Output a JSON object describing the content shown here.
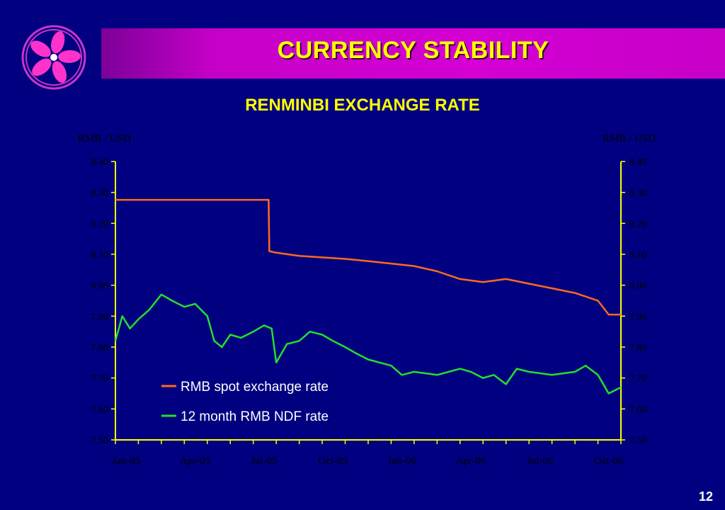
{
  "header": {
    "title": "CURRENCY STABILITY",
    "subtitle": "RENMINBI EXCHANGE RATE",
    "logo_icon": "bauhinia-flower-icon"
  },
  "page_number": "12",
  "colors": {
    "background": "#000080",
    "title_bar": "#cc00cc",
    "title_text": "#ffff00",
    "axis": "#ffff00",
    "spot_series": "#ff6a1a",
    "ndf_series": "#22e02a"
  },
  "chart_data": {
    "type": "line",
    "ylabel_left": "RMB / USD",
    "ylabel_right": "RMB / USD",
    "ylim": [
      7.5,
      8.4
    ],
    "yticks": [
      "7.50",
      "7.60",
      "7.70",
      "7.80",
      "7.90",
      "8.00",
      "8.10",
      "8.20",
      "8.30",
      "8.40"
    ],
    "xticks": [
      "Jan-05",
      "Apr-05",
      "Jul-05",
      "Oct-05",
      "Jan-06",
      "Apr-06",
      "Jul-06",
      "Oct-06"
    ],
    "xlim": [
      "2005-01",
      "2006-11"
    ],
    "grid": false,
    "legend_position": "bottom-center",
    "series": [
      {
        "name": "RMB spot exchange rate",
        "x": [
          "2005-01",
          "2005-02",
          "2005-03",
          "2005-04",
          "2005-05",
          "2005-06",
          "2005-07",
          "2005-07-21",
          "2005-07-22",
          "2005-08",
          "2005-09",
          "2005-10",
          "2005-11",
          "2005-12",
          "2006-01",
          "2006-02",
          "2006-03",
          "2006-04",
          "2006-05",
          "2006-06",
          "2006-07",
          "2006-08",
          "2006-09",
          "2006-10",
          "2006-10-15",
          "2006-11"
        ],
        "values": [
          8.276,
          8.276,
          8.276,
          8.276,
          8.276,
          8.276,
          8.276,
          8.276,
          8.11,
          8.105,
          8.095,
          8.09,
          8.085,
          8.078,
          8.07,
          8.062,
          8.045,
          8.02,
          8.01,
          8.02,
          8.005,
          7.99,
          7.975,
          7.95,
          7.905,
          7.905
        ]
      },
      {
        "name": "12 month RMB NDF rate",
        "x": [
          "2005-01",
          "2005-01-10",
          "2005-01-20",
          "2005-02",
          "2005-02-15",
          "2005-03",
          "2005-03-15",
          "2005-04",
          "2005-04-15",
          "2005-05",
          "2005-05-10",
          "2005-05-20",
          "2005-06",
          "2005-06-15",
          "2005-07",
          "2005-07-15",
          "2005-07-25",
          "2005-08",
          "2005-08-15",
          "2005-09",
          "2005-09-15",
          "2005-10",
          "2005-10-15",
          "2005-11",
          "2005-11-15",
          "2005-12",
          "2006-01",
          "2006-01-15",
          "2006-02",
          "2006-03",
          "2006-04",
          "2006-04-15",
          "2006-05",
          "2006-05-15",
          "2006-06",
          "2006-06-15",
          "2006-07",
          "2006-08",
          "2006-09",
          "2006-09-15",
          "2006-10",
          "2006-10-15",
          "2006-11"
        ],
        "values": [
          7.82,
          7.9,
          7.86,
          7.89,
          7.92,
          7.97,
          7.95,
          7.93,
          7.94,
          7.9,
          7.82,
          7.8,
          7.84,
          7.83,
          7.85,
          7.87,
          7.86,
          7.75,
          7.81,
          7.82,
          7.85,
          7.84,
          7.82,
          7.8,
          7.78,
          7.76,
          7.74,
          7.71,
          7.72,
          7.71,
          7.73,
          7.72,
          7.7,
          7.71,
          7.68,
          7.73,
          7.72,
          7.71,
          7.72,
          7.74,
          7.71,
          7.65,
          7.67
        ]
      }
    ]
  }
}
